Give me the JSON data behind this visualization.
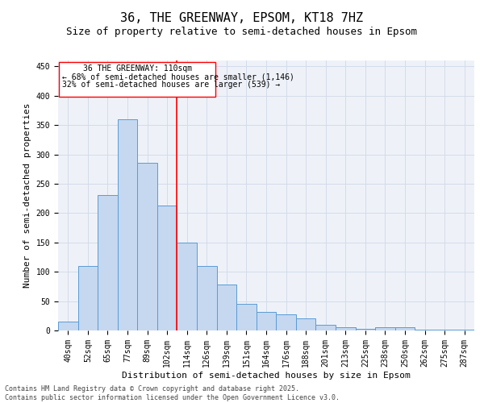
{
  "title": "36, THE GREENWAY, EPSOM, KT18 7HZ",
  "subtitle": "Size of property relative to semi-detached houses in Epsom",
  "xlabel": "Distribution of semi-detached houses by size in Epsom",
  "ylabel": "Number of semi-detached properties",
  "categories": [
    "40sqm",
    "52sqm",
    "65sqm",
    "77sqm",
    "89sqm",
    "102sqm",
    "114sqm",
    "126sqm",
    "139sqm",
    "151sqm",
    "164sqm",
    "176sqm",
    "188sqm",
    "201sqm",
    "213sqm",
    "225sqm",
    "238sqm",
    "250sqm",
    "262sqm",
    "275sqm",
    "287sqm"
  ],
  "values": [
    15,
    110,
    230,
    360,
    285,
    213,
    150,
    110,
    78,
    45,
    32,
    27,
    20,
    10,
    6,
    3,
    5,
    5,
    1,
    1,
    2
  ],
  "bar_color": "#c5d8f0",
  "bar_edge_color": "#5b9bd5",
  "grid_color": "#d0d8e8",
  "background_color": "#eef2f8",
  "property_bin_index": 5,
  "annotation_text_line1": "36 THE GREENWAY: 110sqm",
  "annotation_text_line2": "← 68% of semi-detached houses are smaller (1,146)",
  "annotation_text_line3": "32% of semi-detached houses are larger (539) →",
  "footer_line1": "Contains HM Land Registry data © Crown copyright and database right 2025.",
  "footer_line2": "Contains public sector information licensed under the Open Government Licence v3.0.",
  "ylim": [
    0,
    460
  ],
  "title_fontsize": 11,
  "subtitle_fontsize": 9,
  "axis_label_fontsize": 8,
  "tick_fontsize": 7,
  "annotation_fontsize": 7,
  "footer_fontsize": 6
}
